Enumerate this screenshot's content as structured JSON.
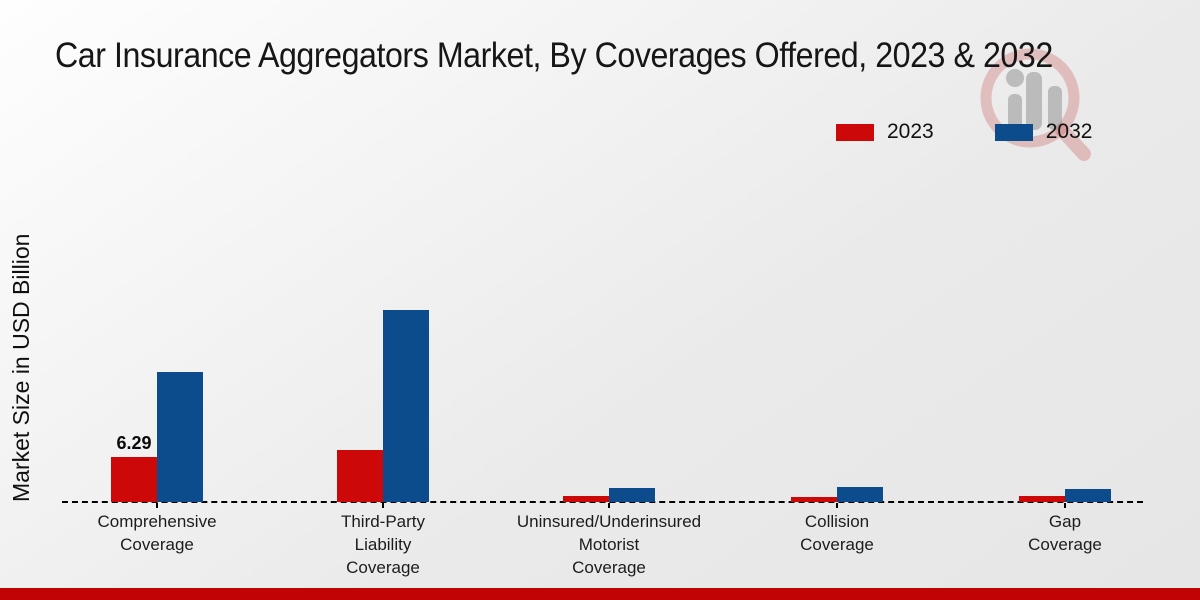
{
  "chart_data": {
    "type": "bar",
    "title": "Car Insurance Aggregators Market, By Coverages Offered, 2023 & 2032",
    "ylabel": "Market Size in USD Billion",
    "xlabel": "",
    "categories": [
      "Comprehensive Coverage",
      "Third-Party Liability Coverage",
      "Uninsured/Underinsured Motorist Coverage",
      "Collision Coverage",
      "Gap Coverage"
    ],
    "category_label_lines": [
      [
        "Comprehensive",
        "Coverage"
      ],
      [
        "Third-Party",
        "Liability",
        "Coverage"
      ],
      [
        "Uninsured/Underinsured",
        "Motorist",
        "Coverage"
      ],
      [
        "Collision",
        "Coverage"
      ],
      [
        "Gap",
        "Coverage"
      ]
    ],
    "series": [
      {
        "name": "2023",
        "color": "#cc0808",
        "values": [
          6.29,
          7.2,
          0.85,
          0.7,
          0.8
        ]
      },
      {
        "name": "2032",
        "color": "#0d4c8c",
        "values": [
          18.1,
          26.9,
          2.0,
          2.1,
          1.85
        ]
      }
    ],
    "data_labels": [
      {
        "category_index": 0,
        "series_index": 0,
        "text": "6.29"
      }
    ],
    "ylim": [
      0,
      28
    ],
    "grid": false,
    "legend_position": "top-right",
    "baseline_style": "dashed",
    "footer_accent_color": "#c00404",
    "watermark": "magnifier-bar-chart-logo"
  }
}
